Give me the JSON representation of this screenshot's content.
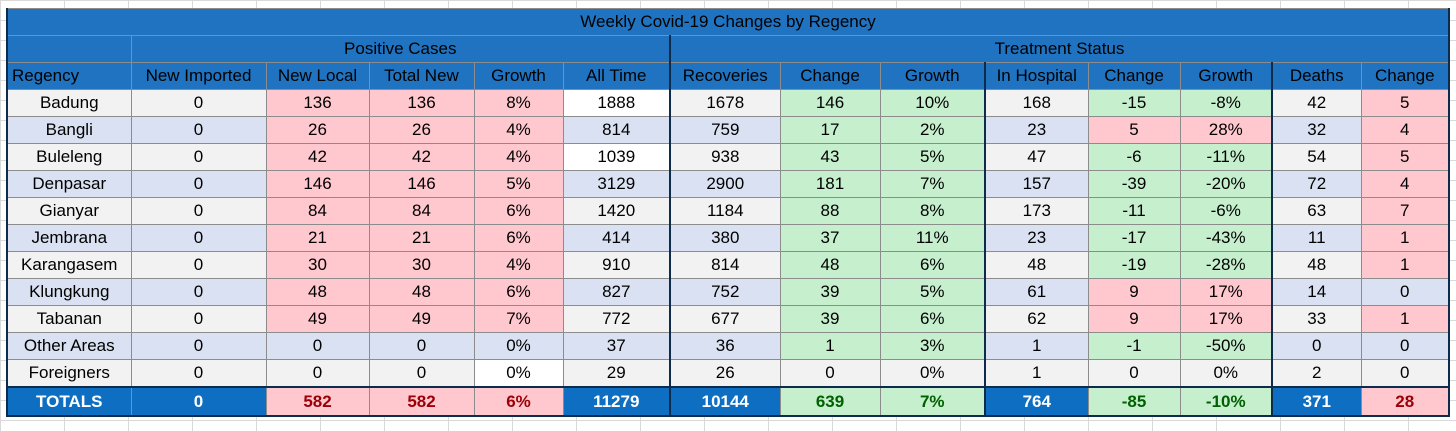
{
  "title": "Weekly Covid-19 Changes by Regency",
  "groups": {
    "positive": "Positive Cases",
    "treatment": "Treatment Status"
  },
  "columns": [
    "Regency",
    "New Imported",
    "New Local",
    "Total New",
    "Growth",
    "All Time",
    "Recoveries",
    "Change",
    "Growth",
    "In Hospital",
    "Change",
    "Growth",
    "Deaths",
    "Change"
  ],
  "rows": [
    {
      "name": "Badung",
      "cells": [
        "0",
        "136",
        "136",
        "8%",
        "1888",
        "1678",
        "146",
        "10%",
        "168",
        "-15",
        "-8%",
        "42",
        "5"
      ]
    },
    {
      "name": "Bangli",
      "cells": [
        "0",
        "26",
        "26",
        "4%",
        "814",
        "759",
        "17",
        "2%",
        "23",
        "5",
        "28%",
        "32",
        "4"
      ]
    },
    {
      "name": "Buleleng",
      "cells": [
        "0",
        "42",
        "42",
        "4%",
        "1039",
        "938",
        "43",
        "5%",
        "47",
        "-6",
        "-11%",
        "54",
        "5"
      ]
    },
    {
      "name": "Denpasar",
      "cells": [
        "0",
        "146",
        "146",
        "5%",
        "3129",
        "2900",
        "181",
        "7%",
        "157",
        "-39",
        "-20%",
        "72",
        "4"
      ]
    },
    {
      "name": "Gianyar",
      "cells": [
        "0",
        "84",
        "84",
        "6%",
        "1420",
        "1184",
        "88",
        "8%",
        "173",
        "-11",
        "-6%",
        "63",
        "7"
      ]
    },
    {
      "name": "Jembrana",
      "cells": [
        "0",
        "21",
        "21",
        "6%",
        "414",
        "380",
        "37",
        "11%",
        "23",
        "-17",
        "-43%",
        "11",
        "1"
      ]
    },
    {
      "name": "Karangasem",
      "cells": [
        "0",
        "30",
        "30",
        "4%",
        "910",
        "814",
        "48",
        "6%",
        "48",
        "-19",
        "-28%",
        "48",
        "1"
      ]
    },
    {
      "name": "Klungkung",
      "cells": [
        "0",
        "48",
        "48",
        "6%",
        "827",
        "752",
        "39",
        "5%",
        "61",
        "9",
        "17%",
        "14",
        "0"
      ]
    },
    {
      "name": "Tabanan",
      "cells": [
        "0",
        "49",
        "49",
        "7%",
        "772",
        "677",
        "39",
        "6%",
        "62",
        "9",
        "17%",
        "33",
        "1"
      ]
    },
    {
      "name": "Other Areas",
      "cells": [
        "0",
        "0",
        "0",
        "0%",
        "37",
        "36",
        "1",
        "3%",
        "1",
        "-1",
        "-50%",
        "0",
        "0"
      ]
    },
    {
      "name": "Foreigners",
      "cells": [
        "0",
        "0",
        "0",
        "0%",
        "29",
        "26",
        "0",
        "0%",
        "1",
        "0",
        "0%",
        "2",
        "0"
      ]
    }
  ],
  "totals": {
    "name": "TOTALS",
    "cells": [
      "0",
      "582",
      "582",
      "6%",
      "11279",
      "10144",
      "639",
      "7%",
      "764",
      "-85",
      "-10%",
      "371",
      "28"
    ]
  },
  "colors": {
    "header_blue": "#1f73c1",
    "bad_fill": "#ffc7ce",
    "bad_text": "#9c0006",
    "good_fill": "#c6efce",
    "good_text": "#006100",
    "band": "#d9e1f2"
  }
}
